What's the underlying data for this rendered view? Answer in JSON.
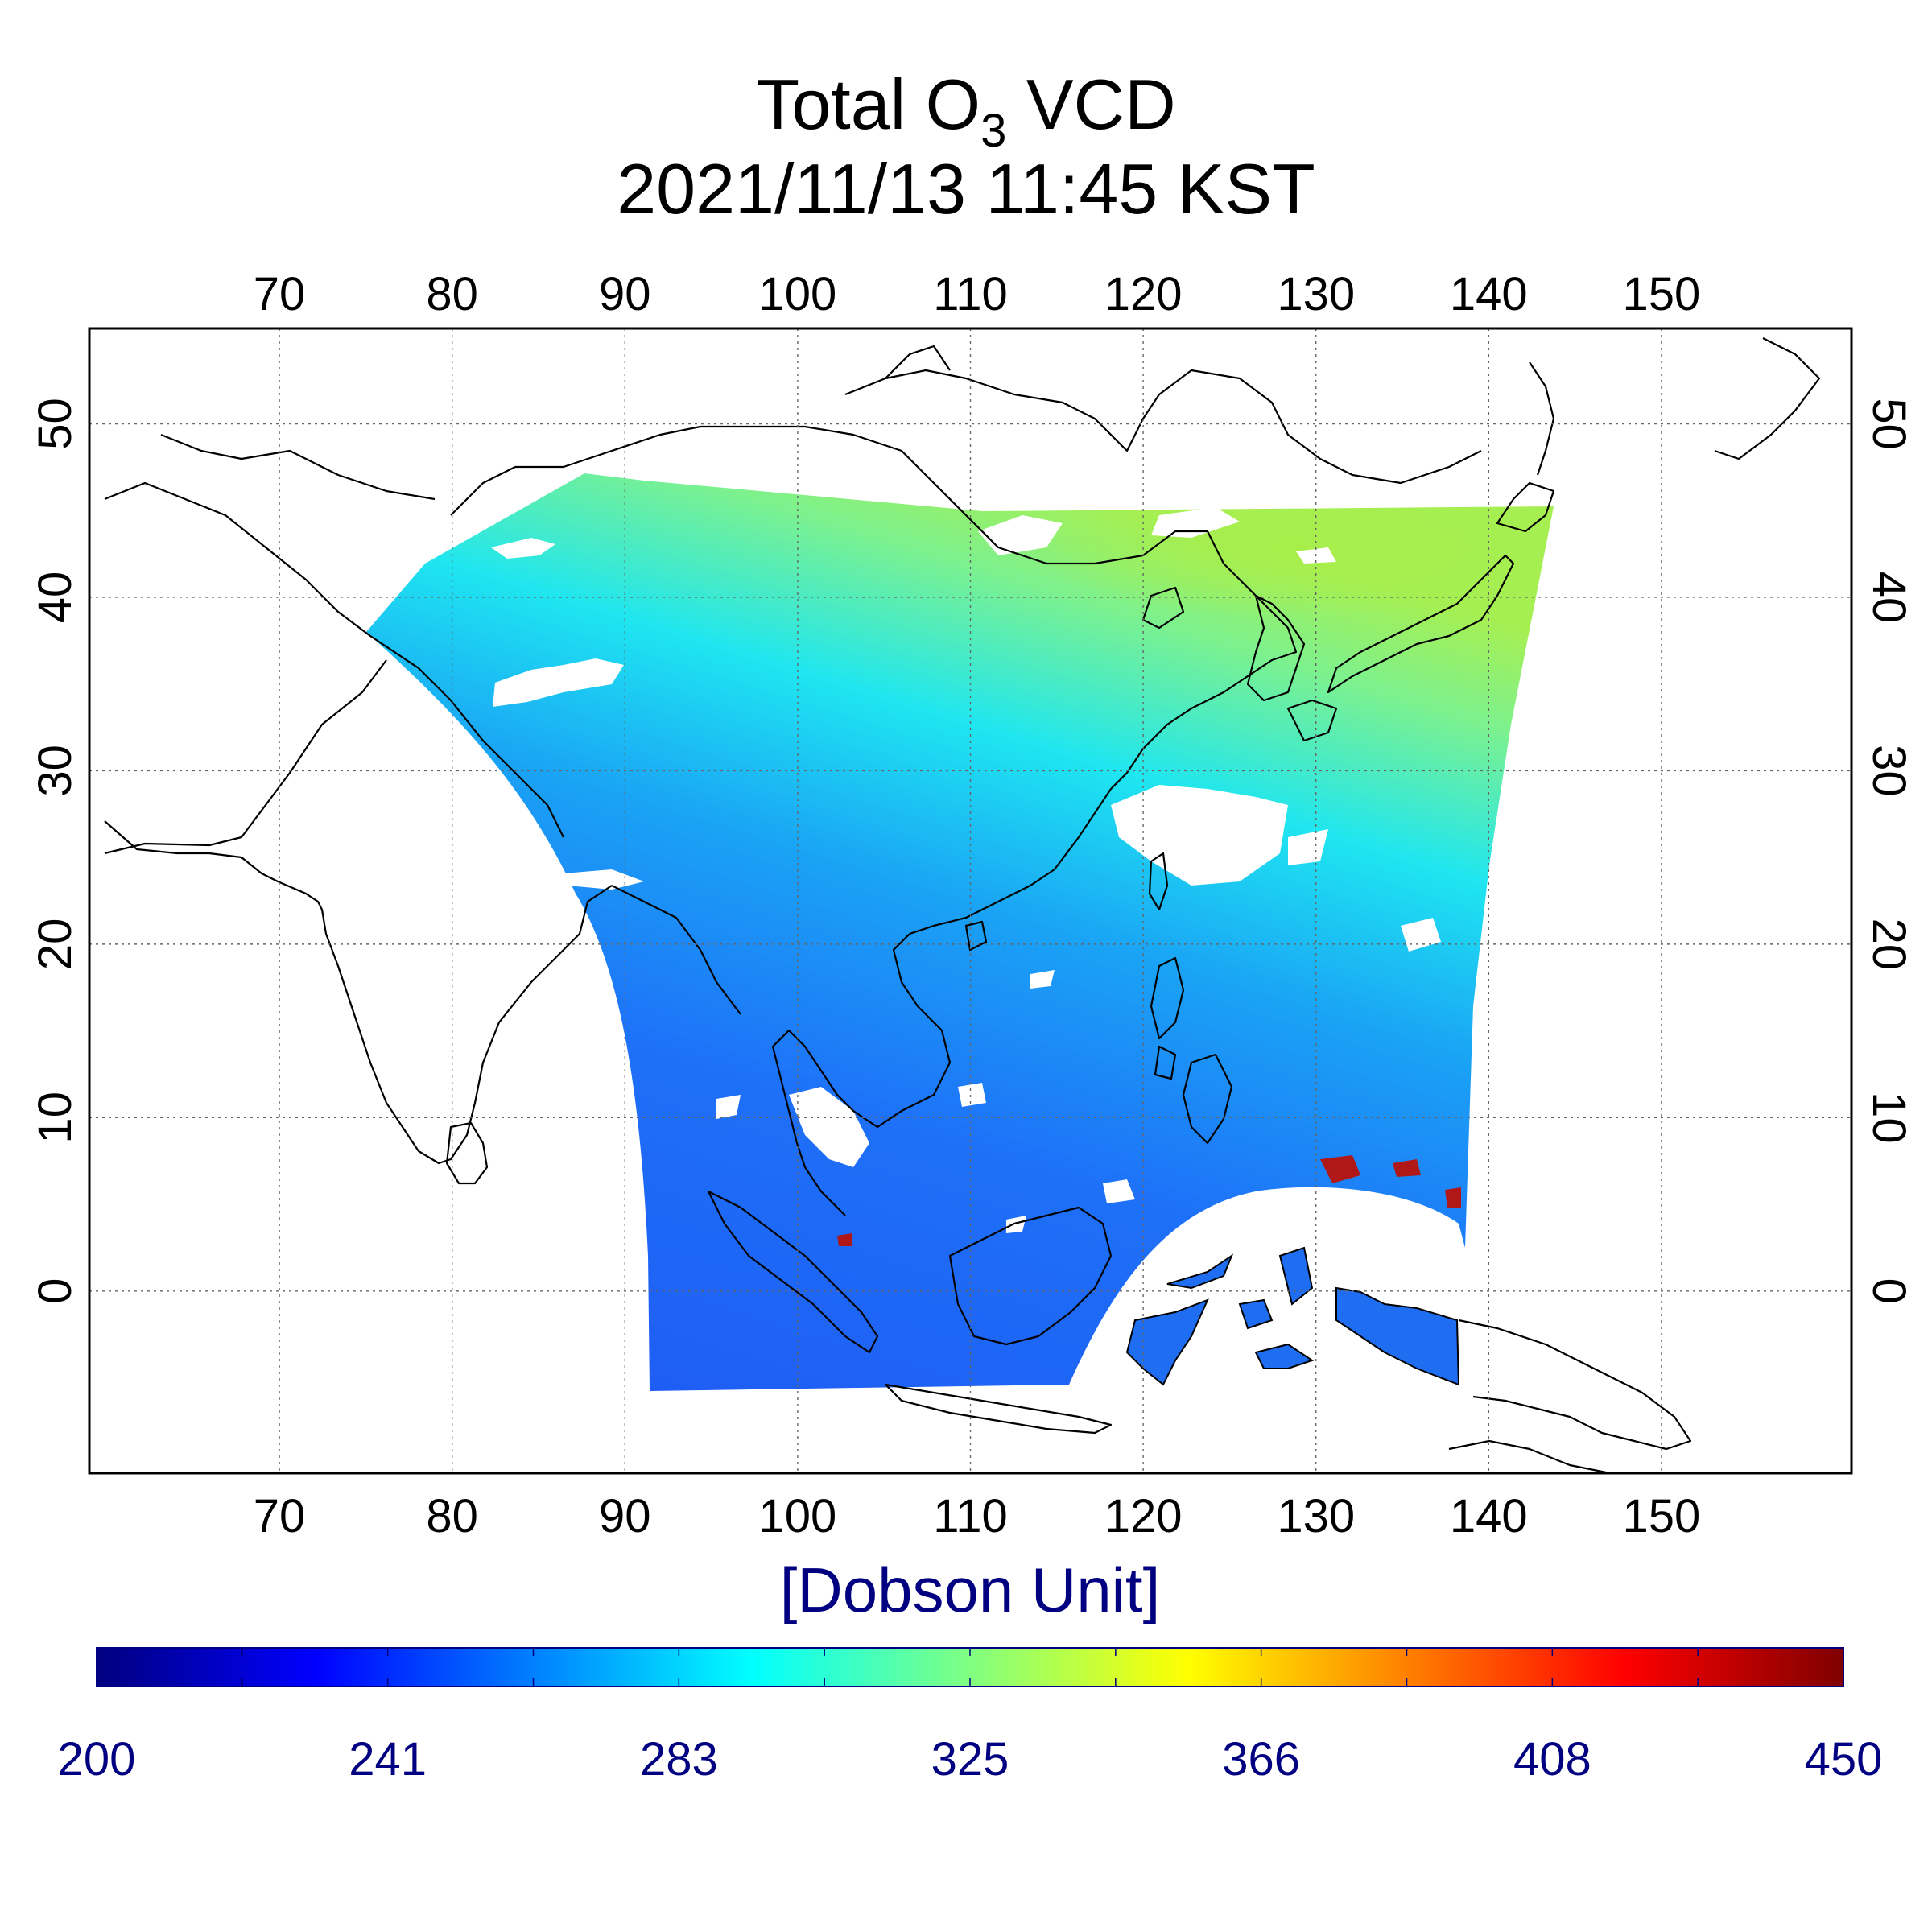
{
  "map": {
    "title_main": "Total O",
    "title_subscript": "3",
    "title_suffix": " VCD",
    "timestamp": "2021/11/13 11:45 KST",
    "unit_label": "[Dobson Unit]",
    "lon_ticks": [
      "70",
      "80",
      "90",
      "100",
      "110",
      "120",
      "130",
      "140",
      "150"
    ],
    "lat_ticks": [
      "0",
      "10",
      "20",
      "30",
      "40",
      "50"
    ],
    "colorbar_ticks": [
      "200",
      "241",
      "283",
      "325",
      "366",
      "408",
      "450"
    ],
    "colorbar_range": [
      200,
      450
    ],
    "colormap": [
      "#00007f",
      "#0000ff",
      "#0080ff",
      "#00ffff",
      "#80ff80",
      "#ffff00",
      "#ff8000",
      "#ff0000",
      "#7f0000"
    ],
    "extent": {
      "lon": [
        59,
        161
      ],
      "lat": [
        -10.5,
        55.5
      ]
    },
    "coast_color": "#000000",
    "cloud_color": "#ffffff"
  }
}
